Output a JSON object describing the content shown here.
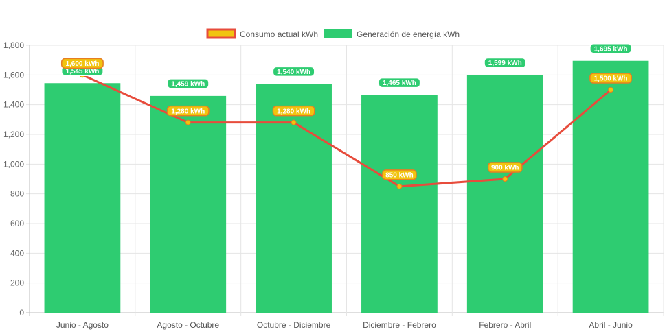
{
  "chart_data": {
    "type": "bar",
    "title": "",
    "xlabel": "",
    "ylabel": "",
    "categories": [
      "Junio - Agosto",
      "Agosto - Octubre",
      "Octubre - Diciembre",
      "Diciembre - Febrero",
      "Febrero - Abril",
      "Abril - Junio"
    ],
    "ylim": [
      0,
      1800
    ],
    "y_ticks": [
      "0",
      "200",
      "400",
      "600",
      "800",
      "1,000",
      "1,200",
      "1,400",
      "1,600",
      "1,800"
    ],
    "grid": true,
    "legend_position": "top",
    "unit": "kWh",
    "series": [
      {
        "name": "Consumo actual kWh",
        "type": "line",
        "values": [
          1600,
          1280,
          1280,
          850,
          900,
          1500
        ],
        "labels": [
          "1,600 kWh",
          "1,280 kWh",
          "1,280 kWh",
          "850 kWh",
          "900 kWh",
          "1,500 kWh"
        ],
        "color": "#e74c3c",
        "label_bg": "#f1c40f",
        "label_border": "#e67e22"
      },
      {
        "name": "Generación de energía kWh",
        "type": "bar",
        "values": [
          1545,
          1459,
          1540,
          1465,
          1599,
          1695
        ],
        "labels": [
          "1,545 kWh",
          "1,459 kWh",
          "1,540 kWh",
          "1,465 kWh",
          "1,599 kWh",
          "1,695 kWh"
        ],
        "color": "#2ecc71",
        "label_bg": "#2ecc71",
        "label_border": "#ffffff"
      }
    ]
  }
}
